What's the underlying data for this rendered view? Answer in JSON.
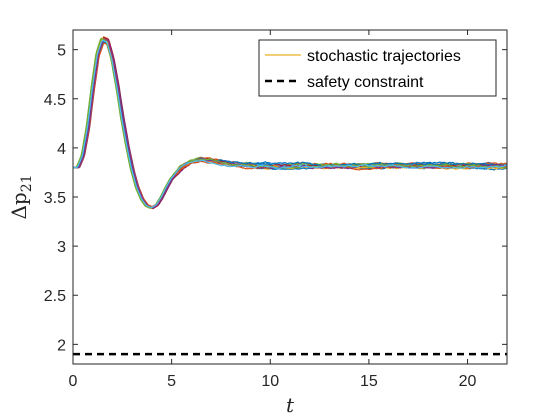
{
  "chart_data": {
    "type": "line",
    "title": "",
    "xlabel": "t",
    "ylabel_base": "Δp",
    "ylabel_sub": "21",
    "xlim": [
      0,
      22
    ],
    "ylim": [
      1.8,
      5.2
    ],
    "xticks": [
      0,
      5,
      10,
      15,
      20
    ],
    "yticks": [
      2,
      2.5,
      3,
      3.5,
      4,
      4.5,
      5
    ],
    "xtick_labels": [
      "0",
      "5",
      "10",
      "15",
      "20"
    ],
    "ytick_labels": [
      "2",
      "2.5",
      "3",
      "3.5",
      "4",
      "4.5",
      "5"
    ],
    "grid": false,
    "legend_position": "top-right",
    "legend": {
      "trajectories_label": "stochastic trajectories",
      "constraint_label": "safety constraint"
    },
    "trajectory_count": 20,
    "nominal_trajectory": {
      "t": [
        0,
        0.25,
        0.5,
        0.75,
        1.0,
        1.25,
        1.5,
        1.75,
        2.0,
        2.25,
        2.5,
        2.75,
        3.0,
        3.25,
        3.5,
        3.75,
        4.0,
        4.25,
        4.5,
        4.75,
        5.0,
        5.5,
        6.0,
        6.5,
        7.0,
        7.5,
        8.0,
        9.0,
        10.0,
        11.0,
        12.0,
        14.0,
        16.0,
        18.0,
        20.0,
        22.0
      ],
      "y": [
        3.8,
        3.8,
        3.92,
        4.2,
        4.6,
        4.95,
        5.1,
        5.08,
        4.9,
        4.62,
        4.3,
        4.02,
        3.78,
        3.6,
        3.48,
        3.41,
        3.39,
        3.42,
        3.5,
        3.6,
        3.69,
        3.8,
        3.86,
        3.88,
        3.87,
        3.85,
        3.83,
        3.82,
        3.81,
        3.81,
        3.81,
        3.81,
        3.81,
        3.81,
        3.81,
        3.81
      ]
    },
    "safety_constraint_y": 1.9,
    "colors": {
      "trajectories": [
        "#EDB120",
        "#0072BD",
        "#D95319",
        "#7E2F8E",
        "#77AC30",
        "#4DBEEE",
        "#A2142F"
      ],
      "constraint": "#000000",
      "axes": "#262626"
    }
  }
}
